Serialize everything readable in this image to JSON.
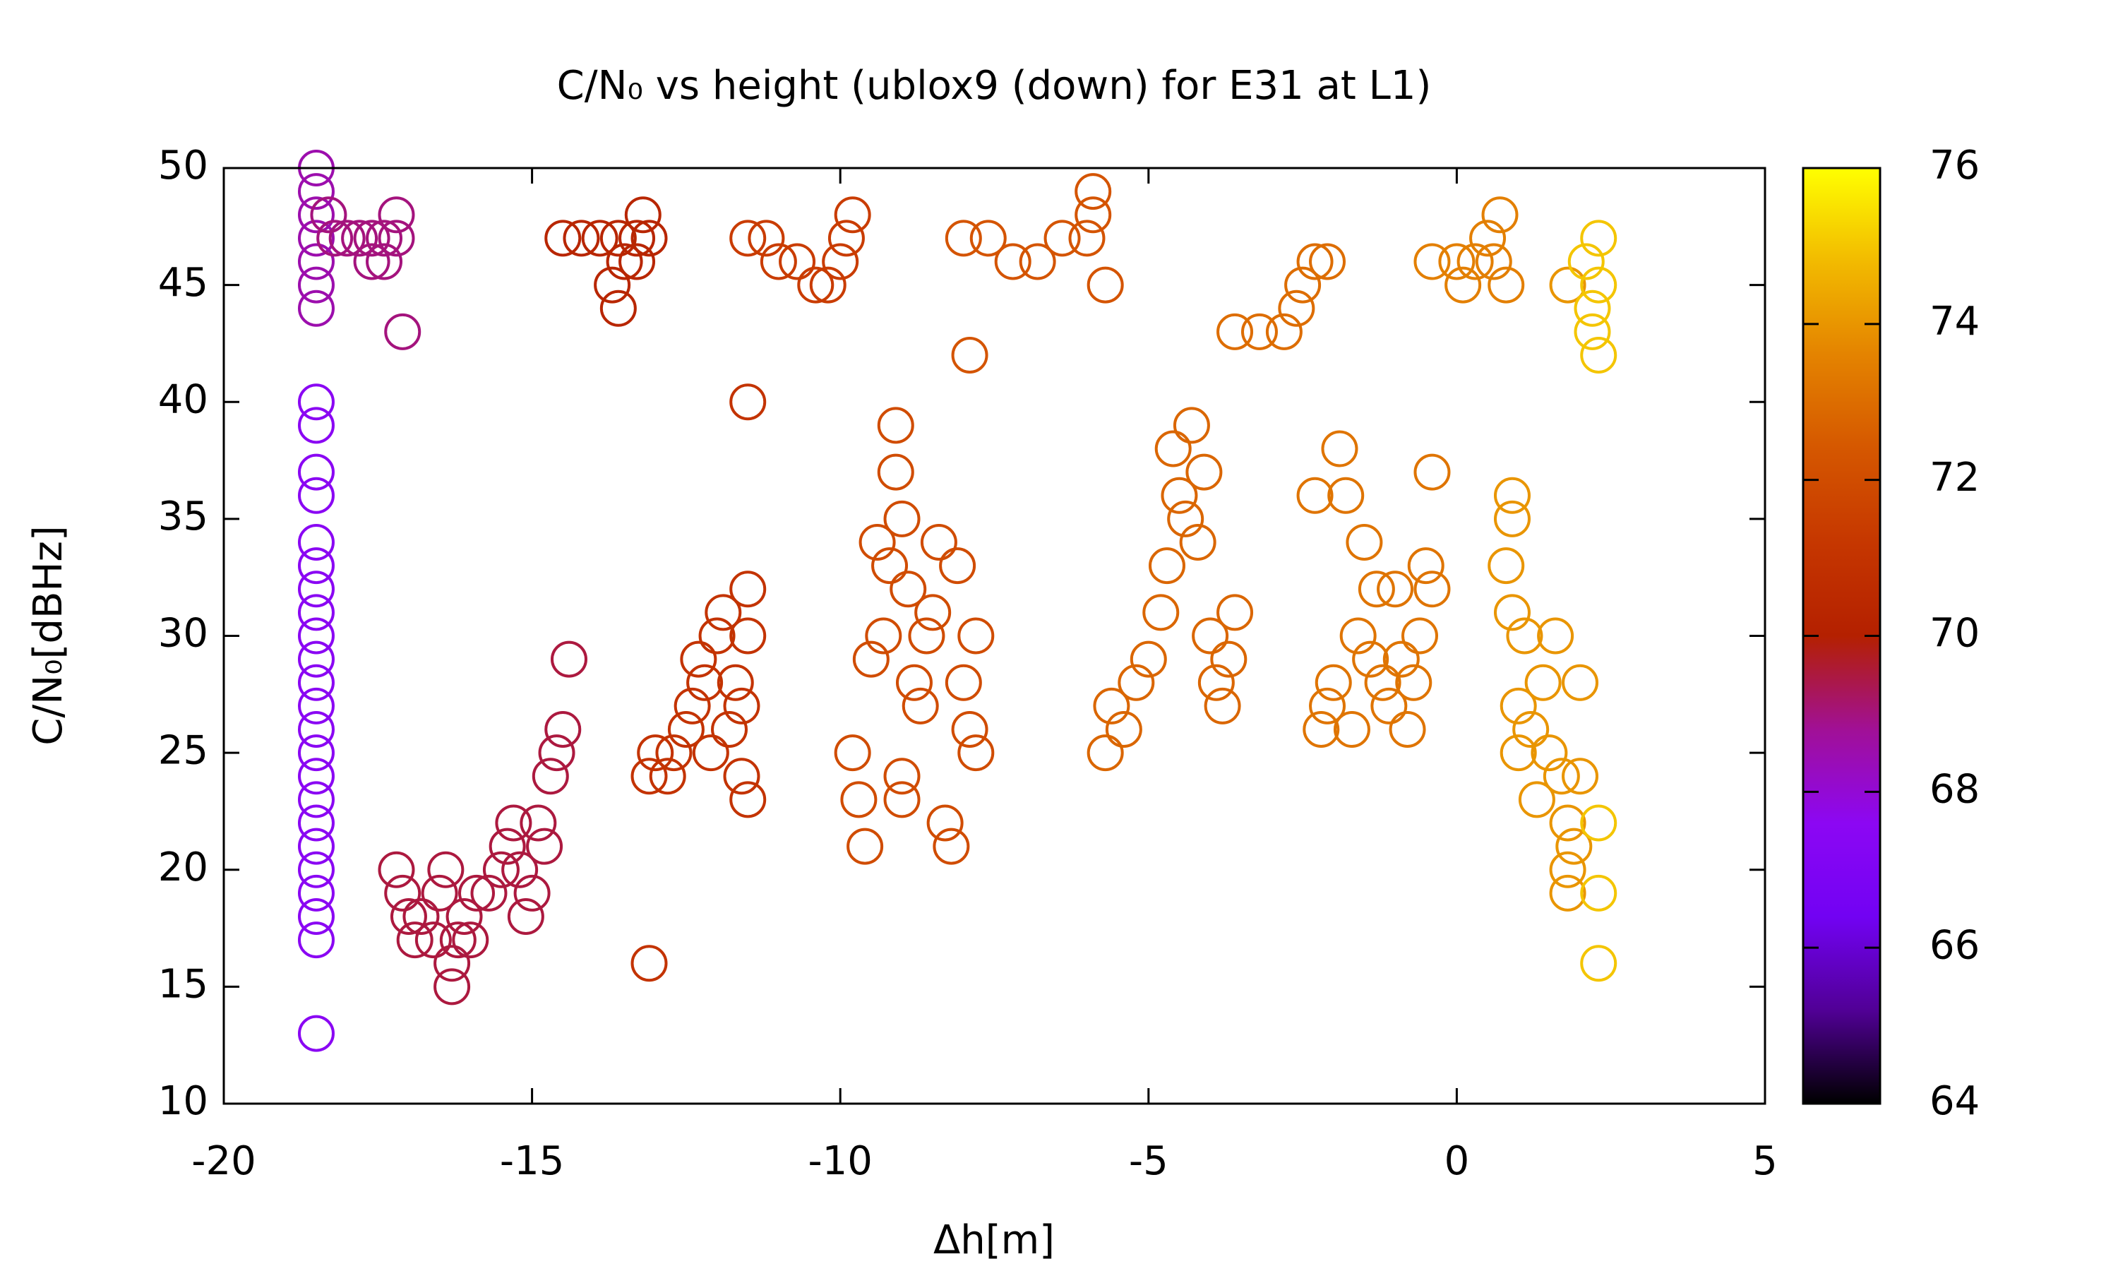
{
  "chart_data": {
    "type": "scatter",
    "title": "C/N₀ vs height (ublox9 (down) for E31 at L1)",
    "x_label": "Δh[m]",
    "y_label": "C/N₀[dBHz]",
    "xlim": [
      -20,
      5
    ],
    "xticks": [
      -20,
      -15,
      -10,
      -5,
      0,
      5
    ],
    "ylim": [
      10,
      50
    ],
    "yticks": [
      10,
      15,
      20,
      25,
      30,
      35,
      40,
      45,
      50
    ],
    "cblim": [
      64,
      76
    ],
    "cbticks": [
      64,
      66,
      68,
      70,
      72,
      74,
      76
    ],
    "colormap": [
      "#000000",
      "#510096",
      "#7202f3",
      "#8c07f3",
      "#a11096",
      "#b42000",
      "#c63700",
      "#d55700",
      "#e48300",
      "#f2ba00",
      "#ffff00"
    ],
    "marker": "open-circle",
    "x": [
      -18.5,
      -18.5,
      -18.5,
      -18.5,
      -18.5,
      -18.5,
      -18.5,
      -18.5,
      -18.5,
      -18.5,
      -18.5,
      -18.5,
      -18.5,
      -18.5,
      -18.5,
      -18.5,
      -18.5,
      -18.5,
      -18.5,
      -18.5,
      -18.5,
      -18.5,
      -18.5,
      -18.5,
      -18.5,
      -18.5,
      -18.5,
      -18.5,
      -18.5,
      -18.5,
      -18.3,
      -18.2,
      -18.0,
      -17.8,
      -17.6,
      -17.4,
      -17.2,
      -17.2,
      -17.6,
      -17.4,
      -17.1,
      -17.2,
      -17.1,
      -17.0,
      -16.9,
      -16.8,
      -16.6,
      -16.5,
      -16.4,
      -16.3,
      -16.3,
      -16.2,
      -16.1,
      -16.0,
      -15.9,
      -15.7,
      -15.5,
      -15.4,
      -15.3,
      -15.2,
      -15.1,
      -15.0,
      -14.9,
      -14.8,
      -14.7,
      -14.6,
      -14.5,
      -14.4,
      -14.5,
      -14.2,
      -13.9,
      -13.6,
      -13.3,
      -13.2,
      -13.3,
      -13.5,
      -13.7,
      -13.6,
      -13.1,
      -13.1,
      -13.1,
      -13.0,
      -12.8,
      -12.7,
      -12.5,
      -12.4,
      -12.3,
      -12.2,
      -12.1,
      -12.0,
      -11.9,
      -11.8,
      -11.7,
      -11.6,
      -11.5,
      -11.5,
      -11.5,
      -11.6,
      -11.5,
      -11.5,
      -11.2,
      -11.0,
      -10.7,
      -10.4,
      -10.2,
      -10.0,
      -9.9,
      -9.8,
      -9.8,
      -9.7,
      -9.6,
      -9.5,
      -9.4,
      -9.3,
      -9.2,
      -9.1,
      -9.1,
      -9.0,
      -8.9,
      -8.8,
      -8.7,
      -8.6,
      -8.5,
      -8.4,
      -8.3,
      -8.2,
      -8.1,
      -8.0,
      -7.9,
      -7.8,
      -7.8,
      -9.0,
      -9.0,
      -8.0,
      -7.6,
      -7.2,
      -6.8,
      -6.4,
      -6.0,
      -5.9,
      -5.9,
      -5.7,
      -7.9,
      -5.7,
      -5.6,
      -5.4,
      -5.2,
      -5.0,
      -4.8,
      -4.7,
      -4.6,
      -4.5,
      -4.4,
      -4.3,
      -4.2,
      -4.1,
      -4.0,
      -3.9,
      -3.8,
      -3.7,
      -3.6,
      -3.6,
      -3.2,
      -2.8,
      -2.6,
      -2.5,
      -2.3,
      -2.1,
      -2.3,
      -2.2,
      -2.1,
      -2.0,
      -1.9,
      -1.8,
      -1.7,
      -1.6,
      -1.5,
      -1.4,
      -1.3,
      -1.2,
      -1.1,
      -1.0,
      -0.9,
      -0.8,
      -0.7,
      -0.6,
      -0.5,
      -0.4,
      -0.4,
      -0.4,
      0.0,
      0.3,
      0.6,
      0.1,
      0.5,
      0.7,
      0.8,
      0.8,
      0.9,
      0.9,
      0.9,
      1.0,
      1.0,
      1.1,
      1.2,
      1.3,
      1.4,
      1.5,
      1.6,
      1.7,
      1.8,
      1.8,
      1.9,
      2.0,
      2.0,
      1.8,
      1.8,
      2.1,
      2.2,
      2.2,
      2.3,
      2.3,
      2.3,
      2.3,
      2.3,
      2.3
    ],
    "values": [
      13,
      17,
      18,
      19,
      20,
      21,
      22,
      23,
      24,
      25,
      26,
      27,
      28,
      29,
      30,
      31,
      32,
      33,
      34,
      36,
      37,
      39,
      40,
      44,
      45,
      46,
      47,
      48,
      49,
      50,
      48,
      47,
      47,
      47,
      47,
      47,
      47,
      48,
      46,
      46,
      43,
      20,
      19,
      18,
      17,
      18,
      17,
      19,
      20,
      16,
      15,
      17,
      18,
      17,
      19,
      19,
      20,
      21,
      22,
      20,
      18,
      19,
      22,
      21,
      24,
      25,
      26,
      29,
      47,
      47,
      47,
      47,
      47,
      48,
      46,
      46,
      45,
      44,
      47,
      16,
      24,
      25,
      24,
      25,
      26,
      27,
      29,
      28,
      25,
      30,
      31,
      26,
      28,
      24,
      23,
      32,
      30,
      27,
      40,
      47,
      47,
      46,
      46,
      45,
      45,
      46,
      47,
      48,
      25,
      23,
      21,
      29,
      34,
      30,
      33,
      37,
      39,
      35,
      32,
      28,
      27,
      30,
      31,
      34,
      22,
      21,
      33,
      28,
      26,
      30,
      25,
      24,
      23,
      47,
      47,
      46,
      46,
      47,
      47,
      49,
      48,
      45,
      42,
      25,
      27,
      26,
      28,
      29,
      31,
      33,
      38,
      36,
      35,
      39,
      34,
      37,
      30,
      28,
      27,
      29,
      31,
      43,
      43,
      43,
      44,
      45,
      46,
      46,
      36,
      26,
      27,
      28,
      38,
      36,
      26,
      30,
      34,
      29,
      32,
      28,
      27,
      32,
      29,
      26,
      28,
      30,
      33,
      37,
      32,
      46,
      46,
      46,
      46,
      45,
      47,
      48,
      45,
      33,
      31,
      36,
      35,
      27,
      25,
      30,
      26,
      23,
      28,
      25,
      30,
      24,
      22,
      20,
      21,
      28,
      24,
      19,
      45,
      46,
      44,
      43,
      42,
      47,
      45,
      22,
      19,
      16
    ],
    "c": [
      67.5,
      67.5,
      67.5,
      67.5,
      67.5,
      67.5,
      67.5,
      67.5,
      67.5,
      67.5,
      67.5,
      67.5,
      67.5,
      67.5,
      67.5,
      67.5,
      67.5,
      67.5,
      67.5,
      67.5,
      67.5,
      67.5,
      67.5,
      68.5,
      68.5,
      68.5,
      68.5,
      68.5,
      68.5,
      68.5,
      69,
      69,
      69,
      69,
      69,
      69,
      69,
      69,
      69,
      69,
      69,
      69.5,
      69.5,
      69.5,
      69.5,
      69.5,
      69.5,
      69.5,
      69.5,
      69.5,
      69.5,
      69.5,
      69.5,
      69.5,
      69.5,
      69.5,
      69.5,
      69.5,
      69.5,
      69.5,
      69.5,
      69.5,
      69.5,
      69.5,
      69.5,
      69.5,
      69.5,
      69.5,
      70.3,
      70.3,
      70.3,
      70.3,
      70.3,
      70.3,
      70.3,
      70.3,
      70.3,
      70.3,
      70.3,
      71,
      71,
      71,
      71,
      71,
      71,
      71,
      71,
      71,
      71,
      71,
      71,
      71,
      71,
      71,
      71,
      71,
      71,
      71,
      71,
      71.4,
      71.4,
      71.4,
      71.4,
      71.4,
      71.4,
      71.4,
      71.4,
      71.4,
      72,
      72,
      72,
      72,
      72,
      72,
      72,
      72,
      72,
      72,
      72,
      72,
      72,
      72,
      72,
      72,
      72,
      72,
      72,
      72,
      72,
      72,
      72,
      72,
      72,
      72.3,
      72.3,
      72.3,
      72.3,
      72.3,
      72.3,
      72.3,
      72.3,
      72.3,
      72.3,
      72.8,
      72.8,
      72.8,
      72.8,
      72.8,
      72.8,
      72.8,
      72.8,
      72.8,
      72.8,
      72.8,
      72.8,
      72.8,
      72.8,
      72.8,
      72.8,
      72.8,
      72.8,
      73,
      73,
      73,
      73,
      73,
      73,
      73,
      73.2,
      73.2,
      73.2,
      73.2,
      73.2,
      73.2,
      73.2,
      73.2,
      73.2,
      73.2,
      73.2,
      73.2,
      73.2,
      73.2,
      73.2,
      73.2,
      73.2,
      73.2,
      73.2,
      73.2,
      73.2,
      73.5,
      73.5,
      73.5,
      73.5,
      73.5,
      73.5,
      73.5,
      73.5,
      74,
      74,
      74,
      74,
      74,
      74,
      74,
      74,
      74,
      74,
      74,
      74,
      74,
      74,
      74,
      74,
      74,
      74,
      74,
      74,
      75,
      75,
      75,
      75,
      75,
      75,
      75,
      75,
      75
    ]
  }
}
